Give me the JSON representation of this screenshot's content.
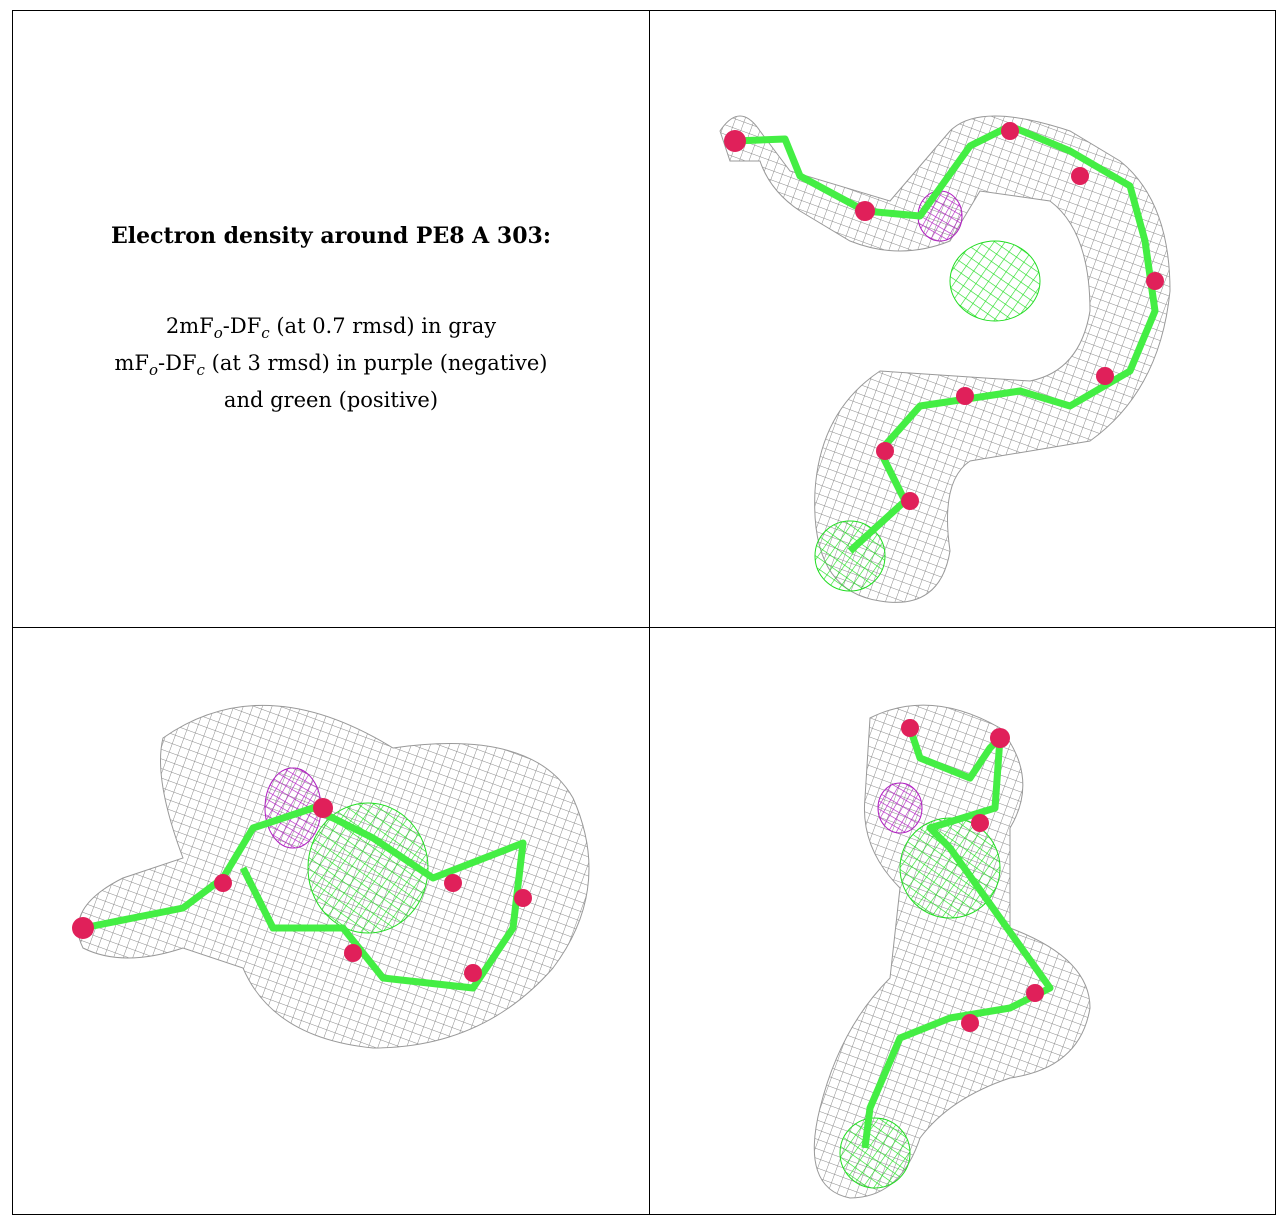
{
  "caption": {
    "title": "Electron density around PE8 A 303:",
    "lines": [
      [
        "2mF",
        "o",
        "-DF",
        "c",
        " (at 0.7 rmsd) in gray"
      ],
      [
        "mF",
        "o",
        "-DF",
        "c",
        " (at 3 rmsd) in purple (negative)"
      ],
      [
        "and green (positive)"
      ]
    ]
  }
}
